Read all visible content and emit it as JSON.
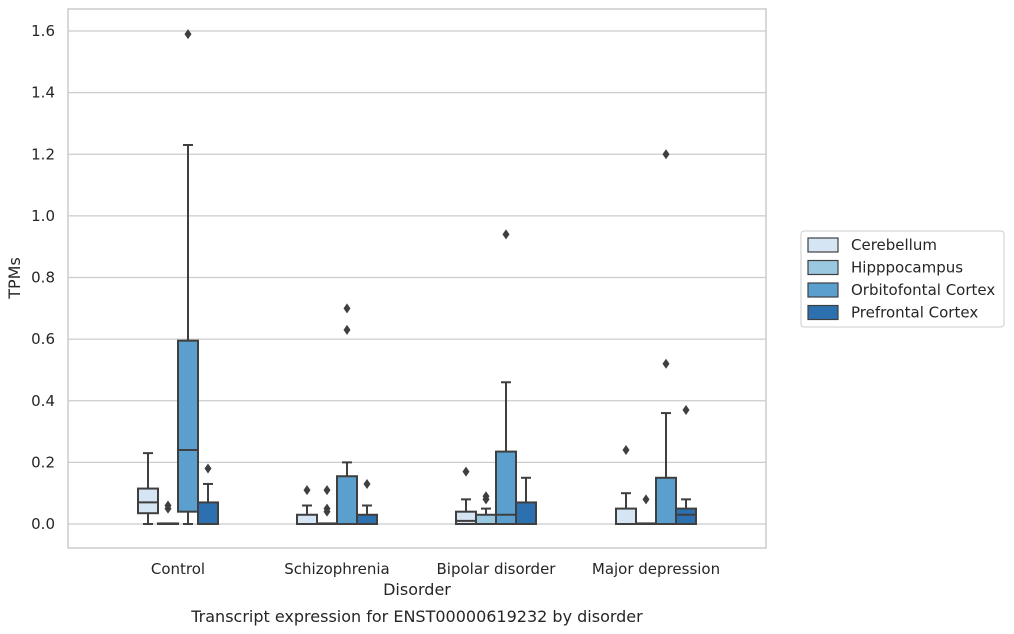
{
  "caption": "Transcript expression for ENST00000619232 by disorder",
  "chart_data": {
    "type": "boxplot",
    "title": "",
    "xlabel": "Disorder",
    "ylabel": "TPMs",
    "ylim": [
      -0.08,
      1.67
    ],
    "yticks": [
      0.0,
      0.2,
      0.4,
      0.6,
      0.8,
      1.0,
      1.2,
      1.4,
      1.6
    ],
    "ytick_labels": [
      "0.0",
      "0.2",
      "0.4",
      "0.6",
      "0.8",
      "1.0",
      "1.2",
      "1.4",
      "1.6"
    ],
    "grid": "horizontal",
    "legend_position": "right",
    "categories": [
      "Control",
      "Schizophrenia",
      "Bipolar disorder",
      "Major depression"
    ],
    "series": [
      {
        "name": "Cerebellum",
        "color": "#d6e5f3",
        "boxes": [
          {
            "whislo": 0.0,
            "q1": 0.035,
            "med": 0.07,
            "q3": 0.115,
            "whishi": 0.23,
            "fliers": []
          },
          {
            "whislo": 0.0,
            "q1": 0.0,
            "med": 0.0,
            "q3": 0.03,
            "whishi": 0.06,
            "fliers": [
              0.11
            ]
          },
          {
            "whislo": 0.0,
            "q1": 0.0,
            "med": 0.01,
            "q3": 0.04,
            "whishi": 0.08,
            "fliers": [
              0.17
            ]
          },
          {
            "whislo": 0.0,
            "q1": 0.0,
            "med": 0.0,
            "q3": 0.05,
            "whishi": 0.1,
            "fliers": [
              0.24
            ]
          }
        ]
      },
      {
        "name": "Hipppocampus",
        "color": "#9ac8e0",
        "boxes": [
          {
            "whislo": 0.0,
            "q1": 0.0,
            "med": 0.0,
            "q3": 0.0,
            "whishi": 0.0,
            "fliers": [
              0.05,
              0.06
            ]
          },
          {
            "whislo": 0.0,
            "q1": 0.0,
            "med": 0.0,
            "q3": 0.0,
            "whishi": 0.0,
            "fliers": [
              0.04,
              0.05,
              0.11
            ]
          },
          {
            "whislo": 0.0,
            "q1": 0.0,
            "med": 0.0,
            "q3": 0.03,
            "whishi": 0.05,
            "fliers": [
              0.08,
              0.09
            ]
          },
          {
            "whislo": 0.0,
            "q1": 0.0,
            "med": 0.0,
            "q3": 0.0,
            "whishi": 0.0,
            "fliers": [
              0.08
            ]
          }
        ]
      },
      {
        "name": "Orbitofontal Cortex",
        "color": "#5a9fce",
        "boxes": [
          {
            "whislo": 0.0,
            "q1": 0.04,
            "med": 0.24,
            "q3": 0.595,
            "whishi": 1.23,
            "fliers": [
              1.59
            ]
          },
          {
            "whislo": 0.0,
            "q1": 0.0,
            "med": 0.0,
            "q3": 0.155,
            "whishi": 0.2,
            "fliers": [
              0.63,
              0.7
            ]
          },
          {
            "whislo": 0.0,
            "q1": 0.0,
            "med": 0.03,
            "q3": 0.235,
            "whishi": 0.46,
            "fliers": [
              0.94
            ]
          },
          {
            "whislo": 0.0,
            "q1": 0.0,
            "med": 0.0,
            "q3": 0.15,
            "whishi": 0.36,
            "fliers": [
              0.52,
              1.2
            ]
          }
        ]
      },
      {
        "name": "Prefrontal Cortex",
        "color": "#2c70b0",
        "boxes": [
          {
            "whislo": 0.0,
            "q1": 0.0,
            "med": 0.0,
            "q3": 0.07,
            "whishi": 0.13,
            "fliers": [
              0.18
            ]
          },
          {
            "whislo": 0.0,
            "q1": 0.0,
            "med": 0.0,
            "q3": 0.03,
            "whishi": 0.06,
            "fliers": [
              0.13
            ]
          },
          {
            "whislo": 0.0,
            "q1": 0.0,
            "med": 0.0,
            "q3": 0.07,
            "whishi": 0.15,
            "fliers": []
          },
          {
            "whislo": 0.0,
            "q1": 0.0,
            "med": 0.03,
            "q3": 0.05,
            "whishi": 0.08,
            "fliers": [
              0.37
            ]
          }
        ]
      }
    ]
  }
}
